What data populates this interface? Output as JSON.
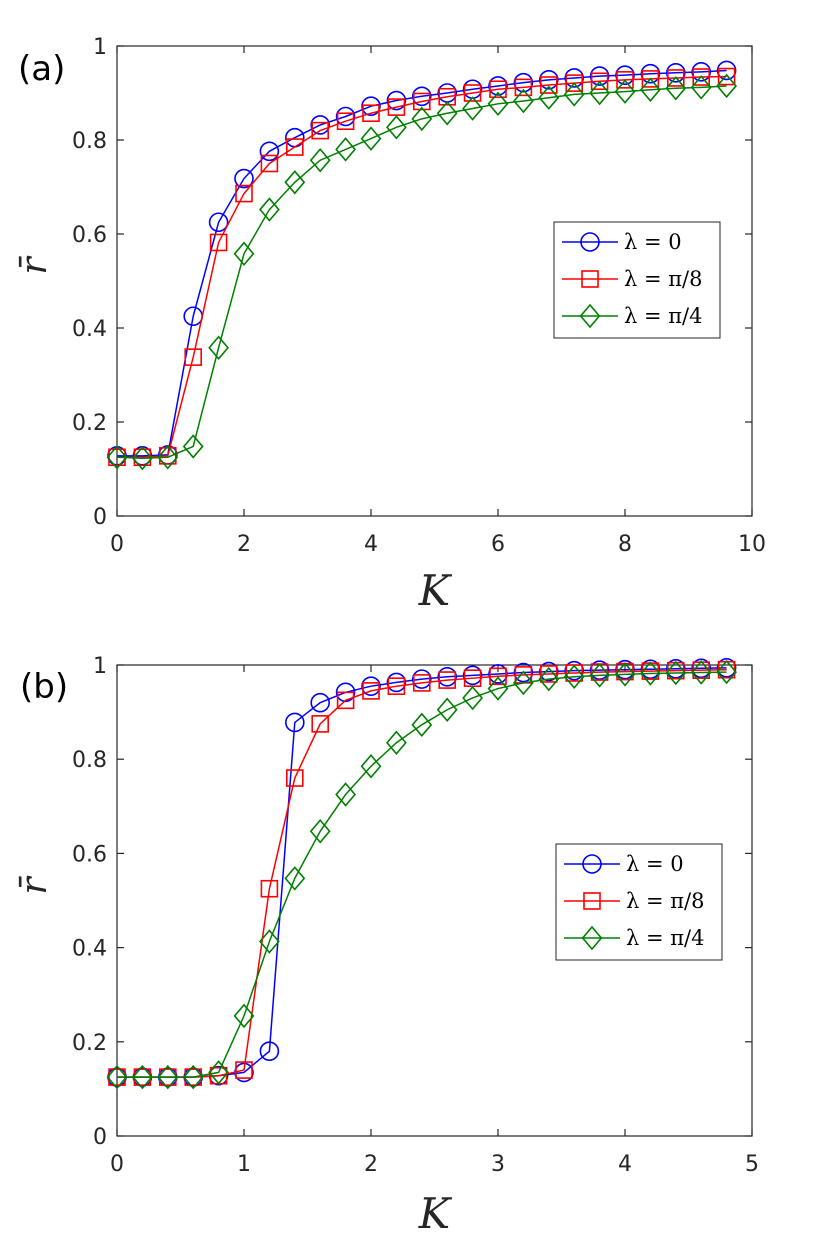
{
  "chart_data": [
    {
      "type": "line",
      "panel_label": "(a)",
      "xlabel": "K",
      "ylabel": "r̄",
      "xlim": [
        0,
        10
      ],
      "ylim": [
        0,
        1
      ],
      "xticks": [
        "0",
        "2",
        "4",
        "6",
        "8",
        "10"
      ],
      "yticks": [
        "0",
        "0.2",
        "0.4",
        "0.6",
        "0.8",
        "1"
      ],
      "grid": false,
      "legend_position": "right",
      "x": [
        0,
        0.4,
        0.8,
        1.2,
        1.6,
        2.0,
        2.4,
        2.8,
        3.2,
        3.6,
        4.0,
        4.4,
        4.8,
        5.2,
        5.6,
        6.0,
        6.4,
        6.8,
        7.2,
        7.6,
        8.0,
        8.4,
        8.8,
        9.2,
        9.6
      ],
      "series": [
        {
          "name": "λ = 0",
          "color": "#0000ff",
          "marker": "circle",
          "values": [
            0.128,
            0.128,
            0.13,
            0.425,
            0.625,
            0.718,
            0.776,
            0.805,
            0.832,
            0.85,
            0.872,
            0.884,
            0.893,
            0.9,
            0.908,
            0.915,
            0.922,
            0.928,
            0.932,
            0.936,
            0.938,
            0.941,
            0.943,
            0.945,
            0.948
          ]
        },
        {
          "name": "λ = π/8",
          "color": "#ff0000",
          "marker": "square",
          "values": [
            0.125,
            0.125,
            0.128,
            0.338,
            0.582,
            0.686,
            0.75,
            0.785,
            0.82,
            0.84,
            0.857,
            0.87,
            0.882,
            0.892,
            0.9,
            0.908,
            0.912,
            0.917,
            0.921,
            0.925,
            0.928,
            0.93,
            0.932,
            0.934,
            0.935
          ]
        },
        {
          "name": "λ = π/4",
          "color": "#008000",
          "marker": "diamond",
          "values": [
            0.125,
            0.123,
            0.125,
            0.148,
            0.358,
            0.558,
            0.652,
            0.71,
            0.757,
            0.78,
            0.803,
            0.827,
            0.845,
            0.857,
            0.867,
            0.877,
            0.883,
            0.89,
            0.897,
            0.9,
            0.903,
            0.907,
            0.91,
            0.912,
            0.915
          ]
        }
      ]
    },
    {
      "type": "line",
      "panel_label": "(b)",
      "xlabel": "K",
      "ylabel": "r̄",
      "xlim": [
        0,
        5
      ],
      "ylim": [
        0,
        1
      ],
      "xticks": [
        "0",
        "1",
        "2",
        "3",
        "4",
        "5"
      ],
      "yticks": [
        "0",
        "0.2",
        "0.4",
        "0.6",
        "0.8",
        "1"
      ],
      "grid": false,
      "legend_position": "right",
      "x": [
        0,
        0.2,
        0.4,
        0.6,
        0.8,
        1.0,
        1.2,
        1.4,
        1.6,
        1.8,
        2.0,
        2.2,
        2.4,
        2.6,
        2.8,
        3.0,
        3.2,
        3.4,
        3.6,
        3.8,
        4.0,
        4.2,
        4.4,
        4.6,
        4.8
      ],
      "series": [
        {
          "name": "λ = 0",
          "color": "#0000ff",
          "marker": "circle",
          "values": [
            0.125,
            0.125,
            0.125,
            0.125,
            0.128,
            0.135,
            0.18,
            0.878,
            0.92,
            0.942,
            0.955,
            0.963,
            0.97,
            0.975,
            0.978,
            0.981,
            0.984,
            0.986,
            0.988,
            0.989,
            0.99,
            0.991,
            0.992,
            0.993,
            0.994
          ]
        },
        {
          "name": "λ = π/8",
          "color": "#ff0000",
          "marker": "square",
          "values": [
            0.125,
            0.125,
            0.125,
            0.125,
            0.128,
            0.14,
            0.525,
            0.76,
            0.875,
            0.925,
            0.945,
            0.955,
            0.962,
            0.968,
            0.972,
            0.976,
            0.979,
            0.981,
            0.983,
            0.985,
            0.986,
            0.987,
            0.988,
            0.989,
            0.99
          ]
        },
        {
          "name": "λ = π/4",
          "color": "#008000",
          "marker": "diamond",
          "values": [
            0.125,
            0.125,
            0.125,
            0.125,
            0.135,
            0.255,
            0.413,
            0.547,
            0.647,
            0.725,
            0.785,
            0.835,
            0.873,
            0.905,
            0.93,
            0.95,
            0.962,
            0.97,
            0.975,
            0.978,
            0.98,
            0.982,
            0.983,
            0.984,
            0.985
          ]
        }
      ]
    }
  ]
}
